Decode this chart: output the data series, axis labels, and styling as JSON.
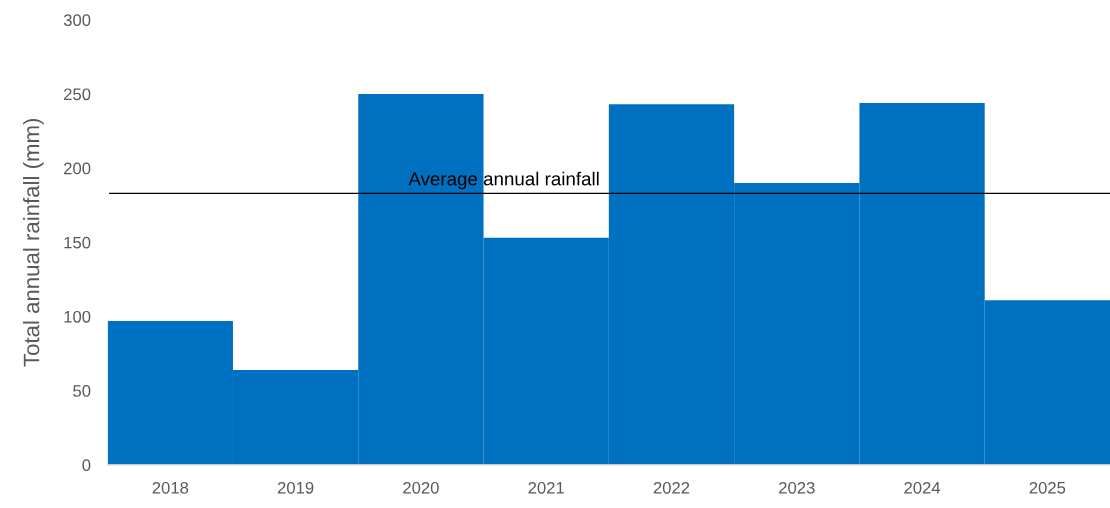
{
  "chart_data": {
    "type": "bar",
    "ylabel": "Total annual rainfall (mm)",
    "categories": [
      "2018",
      "2019",
      "2020",
      "2021",
      "2022",
      "2023",
      "2024",
      "2025"
    ],
    "values": [
      97,
      64,
      250,
      153,
      243,
      190,
      244,
      111
    ],
    "color": "#0070c0",
    "ylim": [
      0,
      300
    ],
    "yticks": [
      0,
      50,
      100,
      150,
      200,
      250,
      300
    ],
    "grid": false,
    "ref_lines": [
      {
        "axis": "y",
        "value": 183,
        "label": "Average annual rainfall",
        "color": "#000000",
        "line_style": "solid"
      }
    ]
  }
}
